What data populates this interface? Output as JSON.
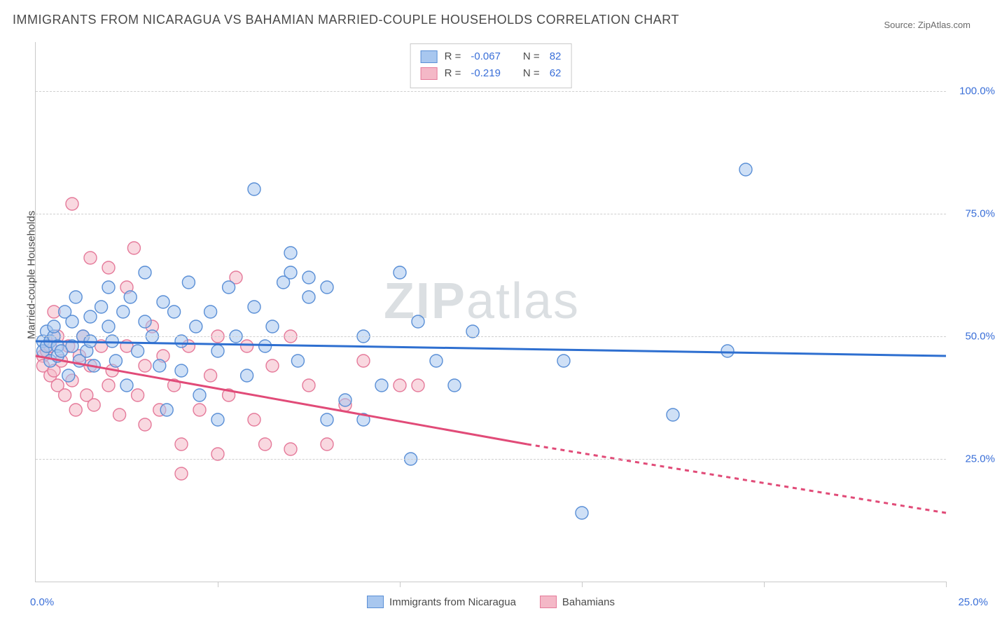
{
  "title": "IMMIGRANTS FROM NICARAGUA VS BAHAMIAN MARRIED-COUPLE HOUSEHOLDS CORRELATION CHART",
  "source_label": "Source: ZipAtlas.com",
  "watermark": "ZIPatlas",
  "ylabel": "Married-couple Households",
  "chart": {
    "type": "scatter-with-regression",
    "background_color": "#ffffff",
    "grid_color": "#cfcfcf",
    "grid_dash": "4,4",
    "axis_color": "#c9c9c9",
    "tick_label_color": "#3a6fd8",
    "ylabel_color": "#4a4a4a",
    "label_fontsize": 15,
    "title_fontsize": 18,
    "marker_radius": 9,
    "marker_opacity": 0.55,
    "line_width": 3,
    "xlim": [
      0,
      25
    ],
    "ylim": [
      0,
      110
    ],
    "ytick_values": [
      25,
      50,
      75,
      100
    ],
    "ytick_labels": [
      "25.0%",
      "50.0%",
      "75.0%",
      "100.0%"
    ],
    "xtick_values": [
      0,
      5,
      10,
      15,
      20,
      25
    ],
    "xaxis_left_label": "0.0%",
    "xaxis_right_label": "25.0%",
    "series": [
      {
        "id": "nicaragua",
        "label": "Immigrants from Nicaragua",
        "color_fill": "#a8c7ef",
        "color_stroke": "#5a8fd6",
        "line_color": "#2e6fd0",
        "R": "-0.067",
        "N": "82",
        "reg_start": [
          0,
          49
        ],
        "reg_solid_end": [
          25,
          46
        ],
        "reg_dash_end": null,
        "points": [
          [
            0.2,
            49
          ],
          [
            0.2,
            47
          ],
          [
            0.3,
            48
          ],
          [
            0.3,
            51
          ],
          [
            0.4,
            45
          ],
          [
            0.4,
            49
          ],
          [
            0.5,
            50
          ],
          [
            0.5,
            52
          ],
          [
            0.6,
            48
          ],
          [
            0.6,
            46
          ],
          [
            0.7,
            47
          ],
          [
            0.8,
            55
          ],
          [
            0.9,
            42
          ],
          [
            1.0,
            53
          ],
          [
            1.0,
            48
          ],
          [
            1.1,
            58
          ],
          [
            1.2,
            45
          ],
          [
            1.3,
            50
          ],
          [
            1.4,
            47
          ],
          [
            1.5,
            54
          ],
          [
            1.5,
            49
          ],
          [
            1.6,
            44
          ],
          [
            1.8,
            56
          ],
          [
            2.0,
            52
          ],
          [
            2.0,
            60
          ],
          [
            2.1,
            49
          ],
          [
            2.2,
            45
          ],
          [
            2.4,
            55
          ],
          [
            2.5,
            40
          ],
          [
            2.6,
            58
          ],
          [
            2.8,
            47
          ],
          [
            3.0,
            53
          ],
          [
            3.0,
            63
          ],
          [
            3.2,
            50
          ],
          [
            3.4,
            44
          ],
          [
            3.5,
            57
          ],
          [
            3.6,
            35
          ],
          [
            3.8,
            55
          ],
          [
            4.0,
            49
          ],
          [
            4.0,
            43
          ],
          [
            4.2,
            61
          ],
          [
            4.4,
            52
          ],
          [
            4.5,
            38
          ],
          [
            4.8,
            55
          ],
          [
            5.0,
            47
          ],
          [
            5.0,
            33
          ],
          [
            5.3,
            60
          ],
          [
            5.5,
            50
          ],
          [
            5.8,
            42
          ],
          [
            6.0,
            56
          ],
          [
            6.0,
            80
          ],
          [
            6.3,
            48
          ],
          [
            6.5,
            52
          ],
          [
            6.8,
            61
          ],
          [
            7.0,
            67
          ],
          [
            7.0,
            63
          ],
          [
            7.2,
            45
          ],
          [
            7.5,
            58
          ],
          [
            7.5,
            62
          ],
          [
            8.0,
            60
          ],
          [
            8.0,
            33
          ],
          [
            8.5,
            37
          ],
          [
            9.0,
            50
          ],
          [
            9.0,
            33
          ],
          [
            9.5,
            40
          ],
          [
            10.0,
            63
          ],
          [
            10.3,
            25
          ],
          [
            10.5,
            53
          ],
          [
            11.0,
            45
          ],
          [
            11.5,
            40
          ],
          [
            12.0,
            51
          ],
          [
            14.5,
            45
          ],
          [
            15.0,
            14
          ],
          [
            17.5,
            34
          ],
          [
            19.5,
            84
          ],
          [
            19.0,
            47
          ]
        ]
      },
      {
        "id": "bahamians",
        "label": "Bahamians",
        "color_fill": "#f4b8c7",
        "color_stroke": "#e57a9a",
        "line_color": "#e14b78",
        "R": "-0.219",
        "N": "62",
        "reg_start": [
          0,
          46
        ],
        "reg_solid_end": [
          13.5,
          28
        ],
        "reg_dash_end": [
          25,
          14
        ],
        "points": [
          [
            0.2,
            46
          ],
          [
            0.2,
            44
          ],
          [
            0.3,
            47
          ],
          [
            0.4,
            42
          ],
          [
            0.4,
            48
          ],
          [
            0.5,
            55
          ],
          [
            0.5,
            43
          ],
          [
            0.6,
            40
          ],
          [
            0.6,
            50
          ],
          [
            0.7,
            45
          ],
          [
            0.8,
            38
          ],
          [
            0.9,
            48
          ],
          [
            1.0,
            41
          ],
          [
            1.0,
            77
          ],
          [
            1.1,
            35
          ],
          [
            1.2,
            46
          ],
          [
            1.3,
            50
          ],
          [
            1.4,
            38
          ],
          [
            1.5,
            44
          ],
          [
            1.5,
            66
          ],
          [
            1.6,
            36
          ],
          [
            1.8,
            48
          ],
          [
            2.0,
            40
          ],
          [
            2.0,
            64
          ],
          [
            2.1,
            43
          ],
          [
            2.3,
            34
          ],
          [
            2.5,
            48
          ],
          [
            2.5,
            60
          ],
          [
            2.7,
            68
          ],
          [
            2.8,
            38
          ],
          [
            3.0,
            44
          ],
          [
            3.0,
            32
          ],
          [
            3.2,
            52
          ],
          [
            3.4,
            35
          ],
          [
            3.5,
            46
          ],
          [
            3.8,
            40
          ],
          [
            4.0,
            28
          ],
          [
            4.0,
            22
          ],
          [
            4.2,
            48
          ],
          [
            4.5,
            35
          ],
          [
            4.8,
            42
          ],
          [
            5.0,
            26
          ],
          [
            5.0,
            50
          ],
          [
            5.3,
            38
          ],
          [
            5.5,
            62
          ],
          [
            5.8,
            48
          ],
          [
            6.0,
            33
          ],
          [
            6.3,
            28
          ],
          [
            6.5,
            44
          ],
          [
            7.0,
            27
          ],
          [
            7.0,
            50
          ],
          [
            7.5,
            40
          ],
          [
            8.0,
            28
          ],
          [
            8.5,
            36
          ],
          [
            9.0,
            45
          ],
          [
            10.0,
            40
          ],
          [
            10.5,
            40
          ]
        ]
      }
    ]
  },
  "legend_top": {
    "R_label": "R =",
    "N_label": "N ="
  }
}
